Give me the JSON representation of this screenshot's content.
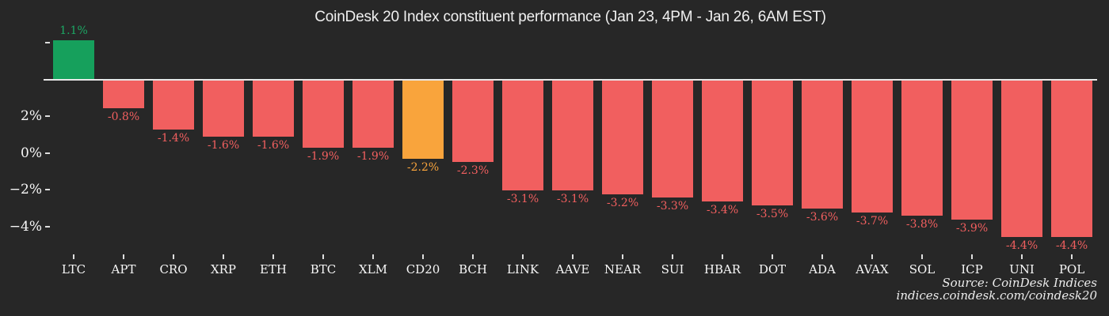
{
  "colors": {
    "background": "#272727",
    "positive_bar": "#16a05c",
    "negative_bar": "#f15f5f",
    "index_bar": "#f9a43c",
    "positive_label": "#1ca764",
    "negative_label": "#f15f5f",
    "index_label": "#f9a43c",
    "title_text": "#f0f0f0",
    "axis_text": "#f7f7f7",
    "tick_mark": "#dedede",
    "baseline": "#e8e8e8",
    "source_text": "#ececec"
  },
  "source": {
    "line1": "Source: CoinDesk Indices",
    "line2": "indices.coindesk.com/coindesk20"
  },
  "chart_data": {
    "type": "bar",
    "title": "CoinDesk 20 Index constituent performance (Jan 23, 4PM - Jan 26, 6AM EST)",
    "unit": "%",
    "categories": [
      "LTC",
      "APT",
      "CRO",
      "XRP",
      "ETH",
      "BTC",
      "XLM",
      "CD20",
      "BCH",
      "LINK",
      "AAVE",
      "NEAR",
      "SUI",
      "HBAR",
      "DOT",
      "ADA",
      "AVAX",
      "SOL",
      "ICP",
      "UNI",
      "POL"
    ],
    "values": [
      1.1,
      -0.8,
      -1.4,
      -1.6,
      -1.6,
      -1.9,
      -1.9,
      -2.2,
      -2.3,
      -3.1,
      -3.1,
      -3.2,
      -3.3,
      -3.4,
      -3.5,
      -3.6,
      -3.7,
      -3.8,
      -3.9,
      -4.4,
      -4.4
    ],
    "value_labels": [
      "1.1%",
      "-0.8%",
      "-1.4%",
      "-1.6%",
      "-1.6%",
      "-1.9%",
      "-1.9%",
      "-2.2%",
      "-2.3%",
      "-3.1%",
      "-3.1%",
      "-3.2%",
      "-3.3%",
      "-3.4%",
      "-3.5%",
      "-3.6%",
      "-3.7%",
      "-3.8%",
      "-3.9%",
      "-4.4%",
      "-4.4%"
    ],
    "index_category": "CD20",
    "y_axis_tick_labels": [
      "",
      "2%",
      "0%",
      "−2%",
      "−4%"
    ],
    "xlabel": "",
    "ylabel": "",
    "ylim": [
      -4.6,
      1.3
    ],
    "grid": false,
    "legend": null
  }
}
